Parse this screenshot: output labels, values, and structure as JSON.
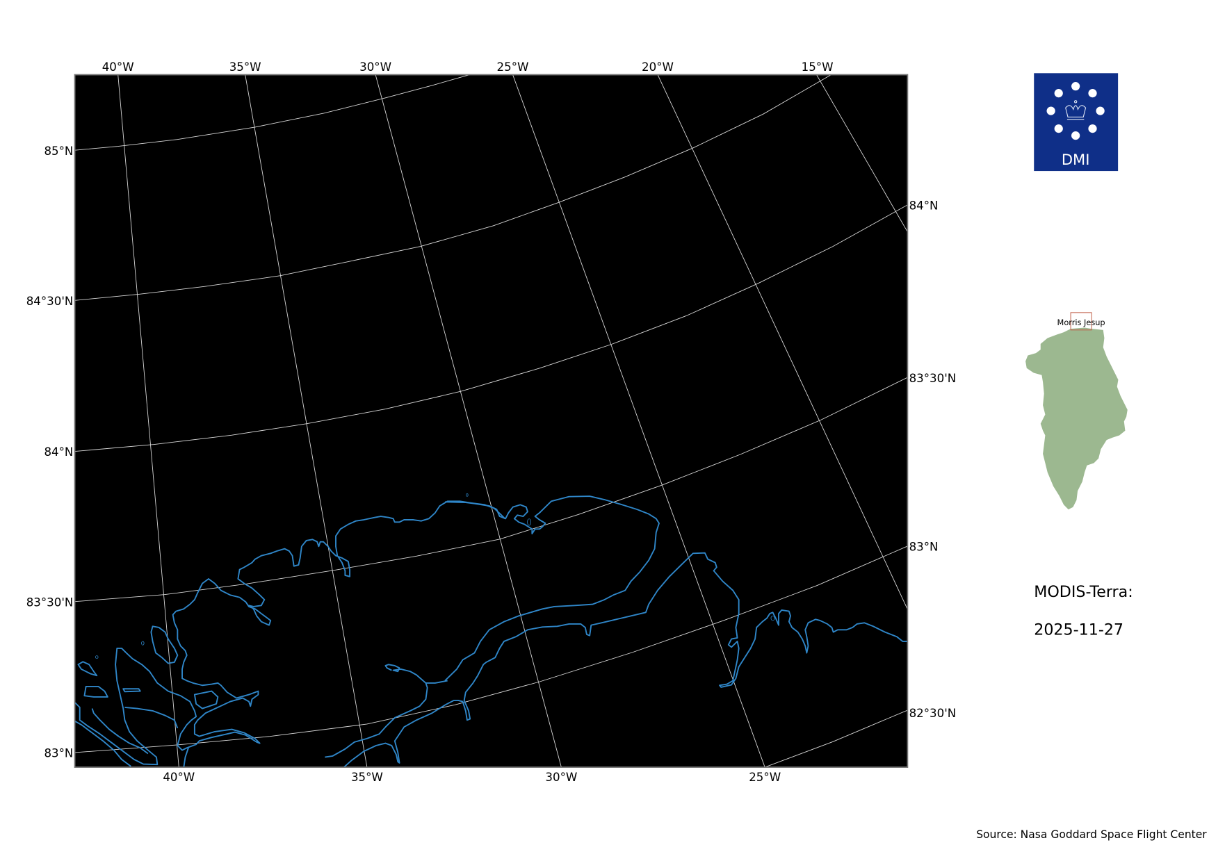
{
  "map": {
    "top_lon_labels": [
      "40°W",
      "35°W",
      "30°W",
      "25°W",
      "20°W",
      "15°W"
    ],
    "bottom_lon_labels": [
      "40°W",
      "35°W",
      "30°W",
      "25°W"
    ],
    "left_lat_labels": [
      "85°N",
      "84°30'N",
      "84°N",
      "83°30'N",
      "83°N"
    ],
    "right_lat_labels": [
      "84°N",
      "83°30'N",
      "83°N",
      "82°30'N"
    ],
    "background_color": "#000000",
    "gridline_color": "#d8d8d8",
    "coastline_color": "#2f86c8"
  },
  "logo": {
    "text": "DMI",
    "color": "#0f2f88"
  },
  "inset": {
    "label": "Morris Jesup",
    "land_color": "#9cb890",
    "box_color": "#c0604a"
  },
  "product": {
    "sensor": "MODIS-Terra:",
    "date": "2025-11-27"
  },
  "source": "Source: Nasa Goddard Space Flight Center"
}
